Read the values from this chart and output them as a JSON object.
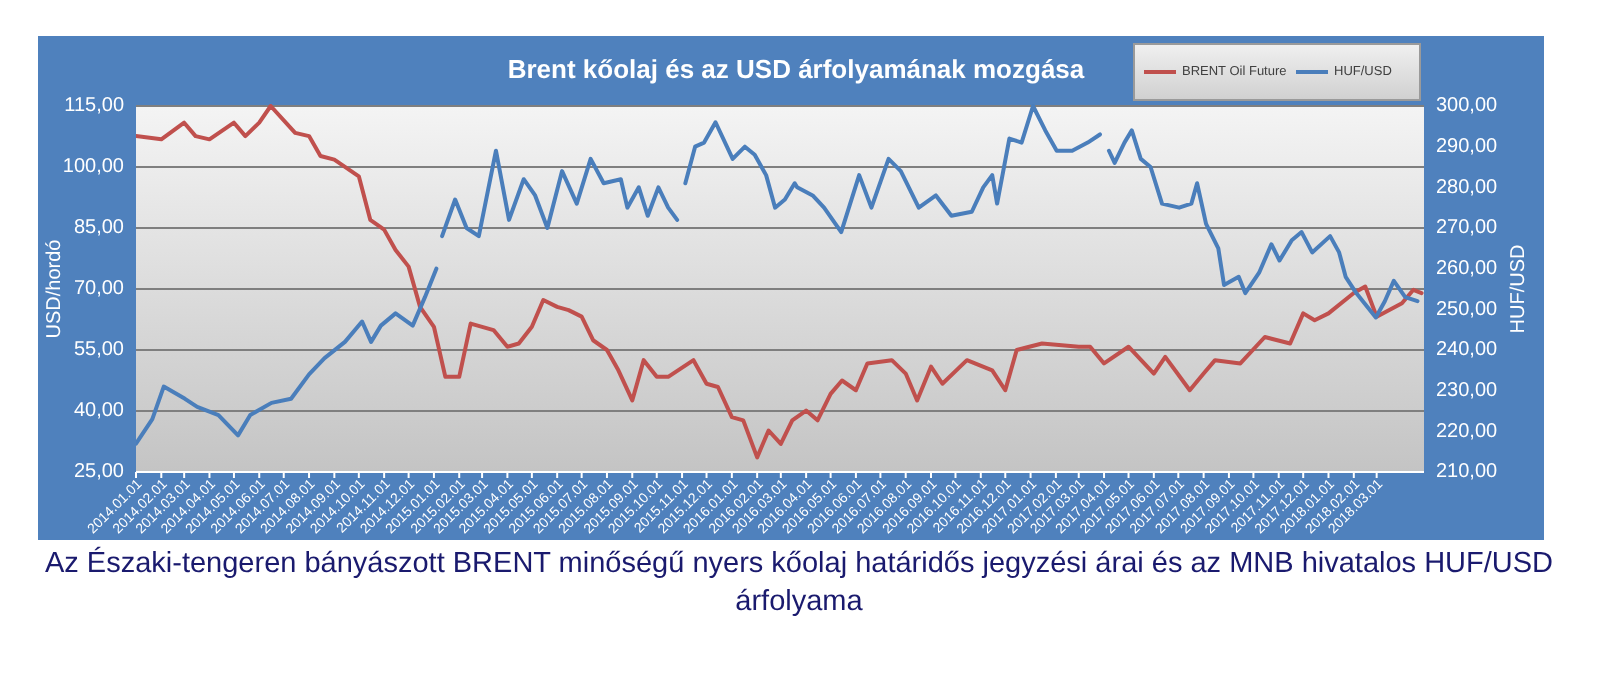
{
  "chart_data": {
    "type": "line",
    "title": "Brent kőolaj és az USD árfolyamának mozgása",
    "ylabel": "USD/hordó",
    "y2label": "HUF/USD",
    "annotations": [
      "Az Északi-tengeren bányászott BRENT minőségű nyers kőolaj határidős jegyzési árai és az MNB hivatalos HUF/USD árfolyama"
    ],
    "xlim": [
      "2014-01-01",
      "2018-04-28"
    ],
    "xticks": [
      {
        "value": "2014-01-01",
        "label": "2014.01.01"
      },
      {
        "value": "2014-02-01",
        "label": "2014.02.01"
      },
      {
        "value": "2014-03-01",
        "label": "2014.03.01"
      },
      {
        "value": "2014-04-01",
        "label": "2014.04.01"
      },
      {
        "value": "2014-05-01",
        "label": "2014.05.01"
      },
      {
        "value": "2014-06-01",
        "label": "2014.06.01"
      },
      {
        "value": "2014-07-01",
        "label": "2014.07.01"
      },
      {
        "value": "2014-08-01",
        "label": "2014.08.01"
      },
      {
        "value": "2014-09-01",
        "label": "2014.09.01"
      },
      {
        "value": "2014-10-01",
        "label": "2014.10.01"
      },
      {
        "value": "2014-11-01",
        "label": "2014.11.01"
      },
      {
        "value": "2014-12-01",
        "label": "2014.12.01"
      },
      {
        "value": "2015-01-01",
        "label": "2015.01.01"
      },
      {
        "value": "2015-02-01",
        "label": "2015.02.01"
      },
      {
        "value": "2015-03-01",
        "label": "2015.03.01"
      },
      {
        "value": "2015-04-01",
        "label": "2015.04.01"
      },
      {
        "value": "2015-05-01",
        "label": "2015.05.01"
      },
      {
        "value": "2015-06-01",
        "label": "2015.06.01"
      },
      {
        "value": "2015-07-01",
        "label": "2015.07.01"
      },
      {
        "value": "2015-08-01",
        "label": "2015.08.01"
      },
      {
        "value": "2015-09-01",
        "label": "2015.09.01"
      },
      {
        "value": "2015-10-01",
        "label": "2015.10.01"
      },
      {
        "value": "2015-11-01",
        "label": "2015.11.01"
      },
      {
        "value": "2015-12-01",
        "label": "2015.12.01"
      },
      {
        "value": "2016-01-01",
        "label": "2016.01.01"
      },
      {
        "value": "2016-02-01",
        "label": "2016.02.01"
      },
      {
        "value": "2016-03-01",
        "label": "2016.03.01"
      },
      {
        "value": "2016-04-01",
        "label": "2016.04.01"
      },
      {
        "value": "2016-05-01",
        "label": "2016.05.01"
      },
      {
        "value": "2016-06-01",
        "label": "2016.06.01"
      },
      {
        "value": "2016-07-01",
        "label": "2016.07.01"
      },
      {
        "value": "2016-08-01",
        "label": "2016.08.01"
      },
      {
        "value": "2016-09-01",
        "label": "2016.09.01"
      },
      {
        "value": "2016-10-01",
        "label": "2016.10.01"
      },
      {
        "value": "2016-11-01",
        "label": "2016.11.01"
      },
      {
        "value": "2016-12-01",
        "label": "2016.12.01"
      },
      {
        "value": "2017-01-01",
        "label": "2017.01.01"
      },
      {
        "value": "2017-02-01",
        "label": "2017.02.01"
      },
      {
        "value": "2017-03-01",
        "label": "2017.03.01"
      },
      {
        "value": "2017-04-01",
        "label": "2017.04.01"
      },
      {
        "value": "2017-05-01",
        "label": "2017.05.01"
      },
      {
        "value": "2017-06-01",
        "label": "2017.06.01"
      },
      {
        "value": "2017-07-01",
        "label": "2017.07.01"
      },
      {
        "value": "2017-08-01",
        "label": "2017.08.01"
      },
      {
        "value": "2017-09-01",
        "label": "2017.09.01"
      },
      {
        "value": "2017-10-01",
        "label": "2017.10.01"
      },
      {
        "value": "2017-11-01",
        "label": "2017.11.01"
      },
      {
        "value": "2017-12-01",
        "label": "2017.12.01"
      },
      {
        "value": "2018-01-01",
        "label": "2018.01.01"
      },
      {
        "value": "2018-02-01",
        "label": "2018.02.01"
      },
      {
        "value": "2018-03-01",
        "label": "2018.03.01"
      }
    ],
    "ylim": [
      25,
      115
    ],
    "yticks": [
      {
        "value": 25,
        "label": "25,00"
      },
      {
        "value": 40,
        "label": "40,00"
      },
      {
        "value": 55,
        "label": "55,00"
      },
      {
        "value": 70,
        "label": "70,00"
      },
      {
        "value": 85,
        "label": "85,00"
      },
      {
        "value": 100,
        "label": "100,00"
      },
      {
        "value": 115,
        "label": "115,00"
      }
    ],
    "y2lim": [
      210,
      300
    ],
    "y2ticks": [
      {
        "value": 210,
        "label": "210,00"
      },
      {
        "value": 220,
        "label": "220,00"
      },
      {
        "value": 230,
        "label": "230,00"
      },
      {
        "value": 240,
        "label": "240,00"
      },
      {
        "value": 250,
        "label": "250,00"
      },
      {
        "value": 260,
        "label": "260,00"
      },
      {
        "value": 270,
        "label": "270,00"
      },
      {
        "value": 280,
        "label": "280,00"
      },
      {
        "value": 290,
        "label": "290,00"
      },
      {
        "value": 300,
        "label": "300,00"
      }
    ],
    "grid": "y",
    "legend": "top right",
    "marker": "none",
    "line_style": "solid",
    "series": [
      {
        "name": "BRENT Oil Future",
        "color": "#c0504d",
        "x": [
          "2014-01-01",
          "2014-02-01",
          "2014-03-01",
          "2014-03-15",
          "2014-04-01",
          "2014-05-01",
          "2014-05-15",
          "2014-06-01",
          "2014-06-15",
          "2014-07-15",
          "2014-08-01",
          "2014-08-15",
          "2014-09-01",
          "2014-10-01",
          "2014-10-15",
          "2014-11-01",
          "2014-11-15",
          "2014-12-01",
          "2014-12-15",
          "2015-01-01",
          "2015-01-15",
          "2015-02-01",
          "2015-02-15",
          "2015-03-15",
          "2015-04-01",
          "2015-04-15",
          "2015-05-01",
          "2015-05-15",
          "2015-06-01",
          "2015-06-15",
          "2015-07-01",
          "2015-07-15",
          "2015-08-01",
          "2015-08-15",
          "2015-09-01",
          "2015-09-15",
          "2015-10-01",
          "2015-10-15",
          "2015-11-15",
          "2015-12-01",
          "2015-12-15",
          "2016-01-01",
          "2016-01-15",
          "2016-02-01",
          "2016-02-15",
          "2016-03-01",
          "2016-03-15",
          "2016-04-01",
          "2016-04-15",
          "2016-05-01",
          "2016-05-15",
          "2016-06-01",
          "2016-06-15",
          "2016-07-15",
          "2016-08-01",
          "2016-08-15",
          "2016-09-01",
          "2016-09-15",
          "2016-10-15",
          "2016-11-15",
          "2016-12-01",
          "2016-12-15",
          "2017-01-15",
          "2017-03-01",
          "2017-03-15",
          "2017-04-01",
          "2017-05-01",
          "2017-06-01",
          "2017-06-15",
          "2017-07-15",
          "2017-08-01",
          "2017-08-15",
          "2017-09-15",
          "2017-10-15",
          "2017-11-15",
          "2017-12-01",
          "2017-12-15",
          "2018-01-01",
          "2018-02-01",
          "2018-02-15",
          "2018-03-01",
          "2018-04-01",
          "2018-04-15",
          "2018-04-25"
        ],
        "values": [
          107.6,
          106.8,
          110.9,
          107.6,
          106.8,
          110.9,
          107.6,
          110.9,
          115,
          108.4,
          107.6,
          102.7,
          101.8,
          97.7,
          87,
          84.6,
          79.6,
          75.5,
          65.6,
          60.7,
          48.4,
          48.4,
          61.5,
          59.9,
          55.8,
          56.6,
          60.7,
          67.3,
          65.6,
          64.8,
          63.2,
          57.4,
          55,
          50,
          42.6,
          52.5,
          48.4,
          48.4,
          52.5,
          46.7,
          45.9,
          38.5,
          37.7,
          28.6,
          35.2,
          31.9,
          37.7,
          40.1,
          37.7,
          44.2,
          47.5,
          45.1,
          51.7,
          52.5,
          49.2,
          42.6,
          50.9,
          46.7,
          52.5,
          50,
          45.1,
          55,
          56.6,
          55.8,
          55.8,
          51.7,
          55.8,
          49.2,
          53.3,
          45.1,
          49.2,
          52.5,
          51.7,
          58.2,
          56.6,
          64,
          62.3,
          64,
          69,
          70.6,
          63.2,
          66.5,
          69.8,
          69
        ]
      },
      {
        "name": "HUF/USD",
        "color": "#4a7ebb",
        "axis": "y2",
        "x": [
          "2014-01-01",
          "2014-01-21",
          "2014-02-04",
          "2014-03-02",
          "2014-03-17",
          "2014-04-12",
          "2014-05-06",
          "2014-05-21",
          "2014-06-16",
          "2014-07-10",
          "2014-08-01",
          "2014-08-20",
          "2014-09-14",
          "2014-10-05",
          "2014-10-16",
          "2014-10-28",
          "2014-11-15",
          "2014-12-06",
          "2014-12-21",
          "2015-01-04",
          "2015-01-08",
          "2015-01-11",
          "2015-01-27",
          "2015-02-10",
          "2015-02-25",
          "2015-03-08",
          "2015-03-18",
          "2015-04-03",
          "2015-04-21",
          "2015-05-05",
          "2015-05-20",
          "2015-06-07",
          "2015-06-25",
          "2015-07-12",
          "2015-07-28",
          "2015-08-18",
          "2015-08-26",
          "2015-09-09",
          "2015-09-20",
          "2015-10-03",
          "2015-10-15",
          "2015-10-26",
          "2015-10-30",
          "2015-11-05",
          "2015-11-17",
          "2015-11-28",
          "2015-12-12",
          "2016-01-02",
          "2016-01-17",
          "2016-01-29",
          "2016-02-12",
          "2016-02-23",
          "2016-03-06",
          "2016-03-18",
          "2016-03-21",
          "2016-04-09",
          "2016-04-23",
          "2016-05-14",
          "2016-06-05",
          "2016-06-20",
          "2016-07-11",
          "2016-07-26",
          "2016-08-17",
          "2016-09-07",
          "2016-09-26",
          "2016-10-21",
          "2016-11-04",
          "2016-11-15",
          "2016-11-21",
          "2016-12-06",
          "2016-12-21",
          "2017-01-04",
          "2017-01-19",
          "2017-02-02",
          "2017-02-21",
          "2017-03-12",
          "2017-03-27",
          "2017-04-01",
          "2017-04-07",
          "2017-04-14",
          "2017-04-26",
          "2017-05-05",
          "2017-05-16",
          "2017-05-28",
          "2017-06-11",
          "2017-07-02",
          "2017-07-17",
          "2017-07-24",
          "2017-08-04",
          "2017-08-19",
          "2017-08-26",
          "2017-09-13",
          "2017-09-21",
          "2017-10-08",
          "2017-10-23",
          "2017-11-02",
          "2017-11-17",
          "2017-11-29",
          "2017-12-12",
          "2018-01-03",
          "2018-01-14",
          "2018-01-22",
          "2018-02-04",
          "2018-02-16",
          "2018-02-28",
          "2018-03-11",
          "2018-03-22",
          "2018-04-05",
          "2018-04-20"
        ],
        "values": [
          217,
          223,
          231,
          228,
          226,
          224,
          219,
          224,
          227,
          228,
          234,
          238,
          242,
          247,
          242,
          246,
          249,
          246,
          253,
          260,
          null,
          268,
          277,
          270,
          268,
          279,
          289,
          272,
          282,
          278,
          270,
          284,
          276,
          287,
          281,
          282,
          275,
          280,
          273,
          280,
          275,
          272,
          null,
          281,
          290,
          291,
          296,
          287,
          290,
          288,
          283,
          275,
          277,
          281,
          280,
          278,
          275,
          269,
          283,
          275,
          287,
          284,
          275,
          278,
          273,
          274,
          280,
          283,
          276,
          292,
          291,
          300,
          294,
          289,
          289,
          291,
          293,
          null,
          289,
          286,
          291,
          294,
          287,
          285,
          276,
          275,
          276,
          281,
          271,
          265,
          256,
          258,
          254,
          259,
          266,
          262,
          267,
          269,
          264,
          268,
          264,
          258,
          254,
          251,
          248,
          252,
          257,
          253,
          252
        ]
      }
    ]
  }
}
